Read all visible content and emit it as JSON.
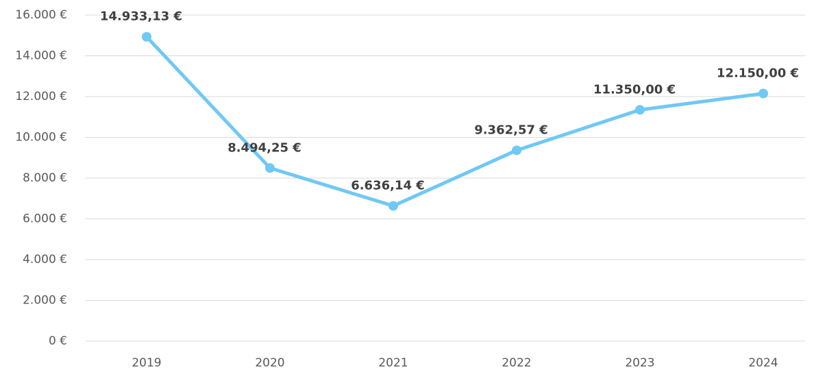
{
  "chart_data": {
    "type": "line",
    "categories": [
      "2019",
      "2020",
      "2021",
      "2022",
      "2023",
      "2024"
    ],
    "values": [
      14933.13,
      8494.25,
      6636.14,
      9362.57,
      11350.0,
      12150.0
    ],
    "value_labels": [
      "14.933,13 €",
      "8.494,25 €",
      "6.636,14 €",
      "9.362,57 €",
      "11.350,00 €",
      "12.150,00 €"
    ],
    "color": "#70c8f4",
    "ylim": [
      0,
      16000
    ],
    "yticks": [
      {
        "value": 0,
        "label": "0 €"
      },
      {
        "value": 2000,
        "label": "2.000 €"
      },
      {
        "value": 4000,
        "label": "4.000 €"
      },
      {
        "value": 6000,
        "label": "6.000 €"
      },
      {
        "value": 8000,
        "label": "8.000 €"
      },
      {
        "value": 10000,
        "label": "10.000 €"
      },
      {
        "value": 12000,
        "label": "12.000 €"
      },
      {
        "value": 14000,
        "label": "14.000 €"
      },
      {
        "value": 16000,
        "label": "16.000 €"
      }
    ],
    "grid": true
  }
}
